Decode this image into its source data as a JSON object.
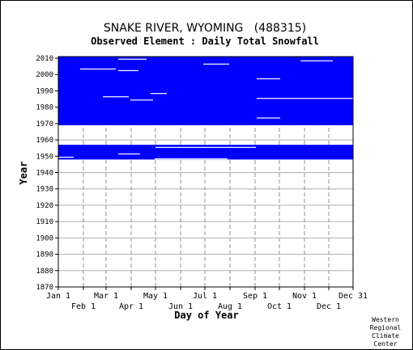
{
  "chart_data": {
    "type": "heatmap",
    "title": "SNAKE RIVER, WYOMING   (488315)",
    "subtitle": "Observed Element : Daily Total Snowfall",
    "xlabel": "Day of Year",
    "ylabel": "Year",
    "x_ticks_upper": [
      "Jan 1",
      "Mar 1",
      "May 1",
      "Jul 1",
      "Sep 1",
      "Nov 1",
      "Dec 31"
    ],
    "x_ticks_lower": [
      "Feb 1",
      "Apr 1",
      "Jun 1",
      "Aug 1",
      "Oct 1",
      "Dec 1"
    ],
    "x_tick_days_upper": [
      1,
      60,
      121,
      182,
      244,
      305,
      365
    ],
    "x_tick_days_lower": [
      32,
      91,
      152,
      213,
      274,
      335
    ],
    "y_ticks": [
      "2010",
      "2000",
      "1990",
      "1980",
      "1970",
      "1960",
      "1950",
      "1940",
      "1930",
      "1920",
      "1910",
      "1900",
      "1890",
      "1880",
      "1870"
    ],
    "ylim": [
      1870,
      2011
    ],
    "xlim": [
      1,
      365
    ],
    "grid": true,
    "fill_color": "#0000ff",
    "data_blocks": [
      {
        "year_start": 1948,
        "year_end": 1956,
        "day_start": 1,
        "day_end": 365
      },
      {
        "year_start": 1969,
        "year_end": 2010,
        "day_start": 1,
        "day_end": 365
      }
    ],
    "gap_segments": [
      {
        "year": 2009,
        "day_start": 75,
        "day_end": 110
      },
      {
        "year": 2008,
        "day_start": 300,
        "day_end": 340
      },
      {
        "year": 2006,
        "day_start": 180,
        "day_end": 212
      },
      {
        "year": 2003,
        "day_start": 28,
        "day_end": 72
      },
      {
        "year": 2002,
        "day_start": 75,
        "day_end": 100
      },
      {
        "year": 1997,
        "day_start": 246,
        "day_end": 275
      },
      {
        "year": 1988,
        "day_start": 115,
        "day_end": 135
      },
      {
        "year": 1986,
        "day_start": 56,
        "day_end": 88
      },
      {
        "year": 1985,
        "day_start": 246,
        "day_end": 365
      },
      {
        "year": 1984,
        "day_start": 90,
        "day_end": 118
      },
      {
        "year": 1973,
        "day_start": 246,
        "day_end": 275
      },
      {
        "year": 1955,
        "day_start": 121,
        "day_end": 245
      },
      {
        "year": 1951,
        "day_start": 75,
        "day_end": 102
      },
      {
        "year": 1949,
        "day_start": 1,
        "day_end": 20
      },
      {
        "year": 1948,
        "day_start": 120,
        "day_end": 210
      }
    ]
  },
  "credit": [
    "Western",
    "Regional",
    "Climate",
    "Center"
  ]
}
